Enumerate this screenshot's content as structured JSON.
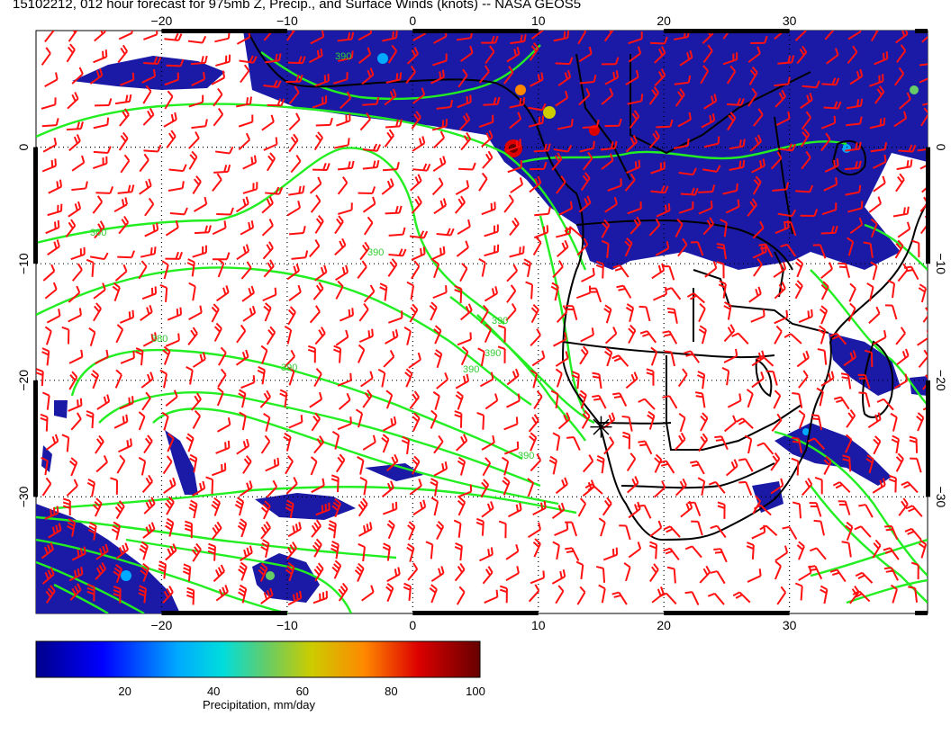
{
  "title": "15102212, 012 hour forecast for 975mb Z, Precip., and Surface Winds (knots) -- NASA GEOS5",
  "map": {
    "lon_range": [
      -30,
      41
    ],
    "lat_range": [
      -40,
      10
    ],
    "lon_ticks": [
      -20,
      -10,
      0,
      10,
      20,
      30
    ],
    "lat_ticks": [
      0,
      -10,
      -20,
      -30
    ],
    "lon_tick_labels": [
      "−20",
      "−10",
      "0",
      "10",
      "20",
      "30"
    ],
    "lat_tick_labels": [
      "0",
      "−10",
      "−20",
      "−30"
    ],
    "grid": true,
    "marker": {
      "lon": 15,
      "lat": -24,
      "symbol": "asterisk"
    },
    "colors": {
      "contours": "#22ee22",
      "contour_label": "#33cc33",
      "barbs": "#ff1111",
      "coastline": "#000000",
      "precip_base": "#1a1aa6"
    },
    "contour_labels": [
      "390",
      "360",
      "390",
      "390",
      "380",
      "390",
      "390",
      "390",
      "390"
    ]
  },
  "colorbar": {
    "tick_labels": [
      "20",
      "40",
      "60",
      "80",
      "100"
    ],
    "label": "Precipitation, mm/day",
    "stops": [
      "#00008b",
      "#0000ff",
      "#00aaff",
      "#00dddd",
      "#66cc66",
      "#cccc00",
      "#ff8800",
      "#dd0000",
      "#660000"
    ]
  }
}
